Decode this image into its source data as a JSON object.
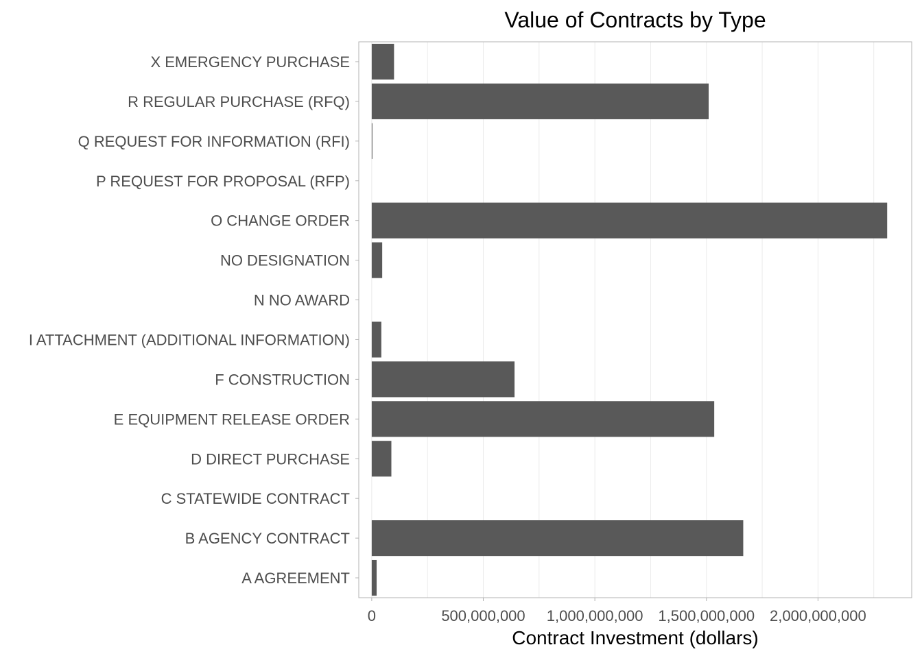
{
  "chart_data": {
    "type": "bar",
    "orientation": "horizontal",
    "title": "Value of Contracts by Type",
    "xlabel": "Contract Investment (dollars)",
    "ylabel": "",
    "xlim": [
      -58000000,
      2420000000
    ],
    "xticks": [
      0,
      500000000,
      1000000000,
      1500000000,
      2000000000
    ],
    "xtick_labels": [
      "0",
      "500,000,000",
      "1,000,000,000",
      "1,500,000,000",
      "2,000,000,000"
    ],
    "grid": true,
    "legend": "none",
    "bar_color": "#595959",
    "categories": [
      "X EMERGENCY PURCHASE",
      "R REGULAR PURCHASE (RFQ)",
      "Q REQUEST FOR INFORMATION (RFI)",
      "P REQUEST FOR PROPOSAL (RFP)",
      "O CHANGE ORDER",
      "NO DESIGNATION",
      "N NO AWARD",
      "I ATTACHMENT (ADDITIONAL INFORMATION)",
      "F CONSTRUCTION",
      "E EQUIPMENT RELEASE ORDER",
      "D DIRECT PURCHASE",
      "C STATEWIDE CONTRACT",
      "B AGENCY CONTRACT",
      "A AGREEMENT"
    ],
    "values": [
      100000000,
      1510000000,
      3000000,
      0,
      2310000000,
      47000000,
      0,
      43000000,
      640000000,
      1535000000,
      88000000,
      0,
      1665000000,
      22000000
    ]
  }
}
